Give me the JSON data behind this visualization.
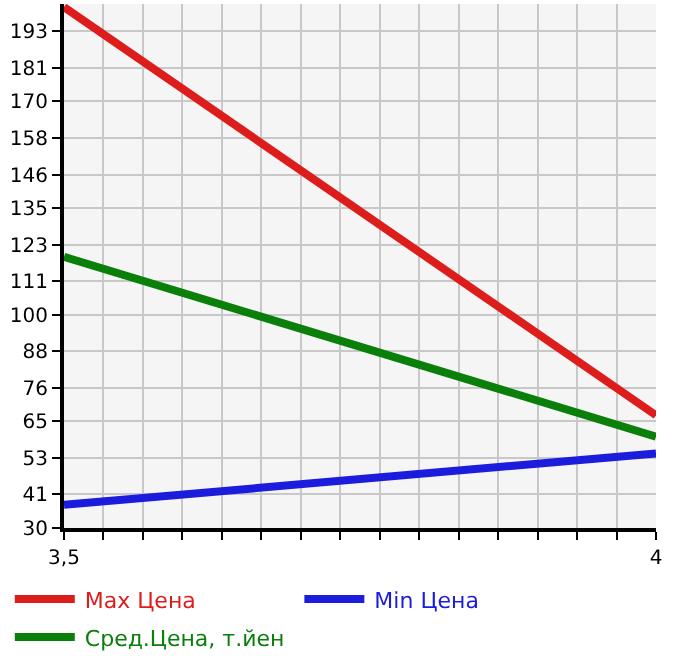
{
  "chart_data": {
    "type": "line",
    "x": [
      3.5,
      4
    ],
    "series": [
      {
        "name": "Max Цена",
        "color": "#dd1c1c",
        "values": [
          201,
          67
        ]
      },
      {
        "name": "Min Цена",
        "color": "#1c1cdd",
        "values": [
          37.6,
          54.5
        ]
      },
      {
        "name": "Сред.Цена, т.йен",
        "color": "#0a7f0a",
        "values": [
          119,
          60
        ]
      }
    ],
    "xlim": [
      3.5,
      4
    ],
    "xticks": [
      {
        "value": 3.5,
        "label": "3,5"
      },
      {
        "value": 3.5333,
        "label": null
      },
      {
        "value": 3.5667,
        "label": null
      },
      {
        "value": 3.6,
        "label": null
      },
      {
        "value": 3.6333,
        "label": null
      },
      {
        "value": 3.6667,
        "label": null
      },
      {
        "value": 3.7,
        "label": null
      },
      {
        "value": 3.7333,
        "label": null
      },
      {
        "value": 3.7667,
        "label": null
      },
      {
        "value": 3.8,
        "label": null
      },
      {
        "value": 3.8333,
        "label": null
      },
      {
        "value": 3.8667,
        "label": null
      },
      {
        "value": 3.9,
        "label": null
      },
      {
        "value": 3.9333,
        "label": null
      },
      {
        "value": 3.9667,
        "label": null
      },
      {
        "value": 4,
        "label": "4"
      }
    ],
    "ylim": [
      30,
      202
    ],
    "yticks": [
      30,
      41,
      53,
      65,
      76,
      88,
      100,
      111,
      123,
      135,
      146,
      158,
      170,
      181,
      193
    ],
    "grid": true,
    "legend": "bottom",
    "marker": "none",
    "line_style": "solid"
  }
}
